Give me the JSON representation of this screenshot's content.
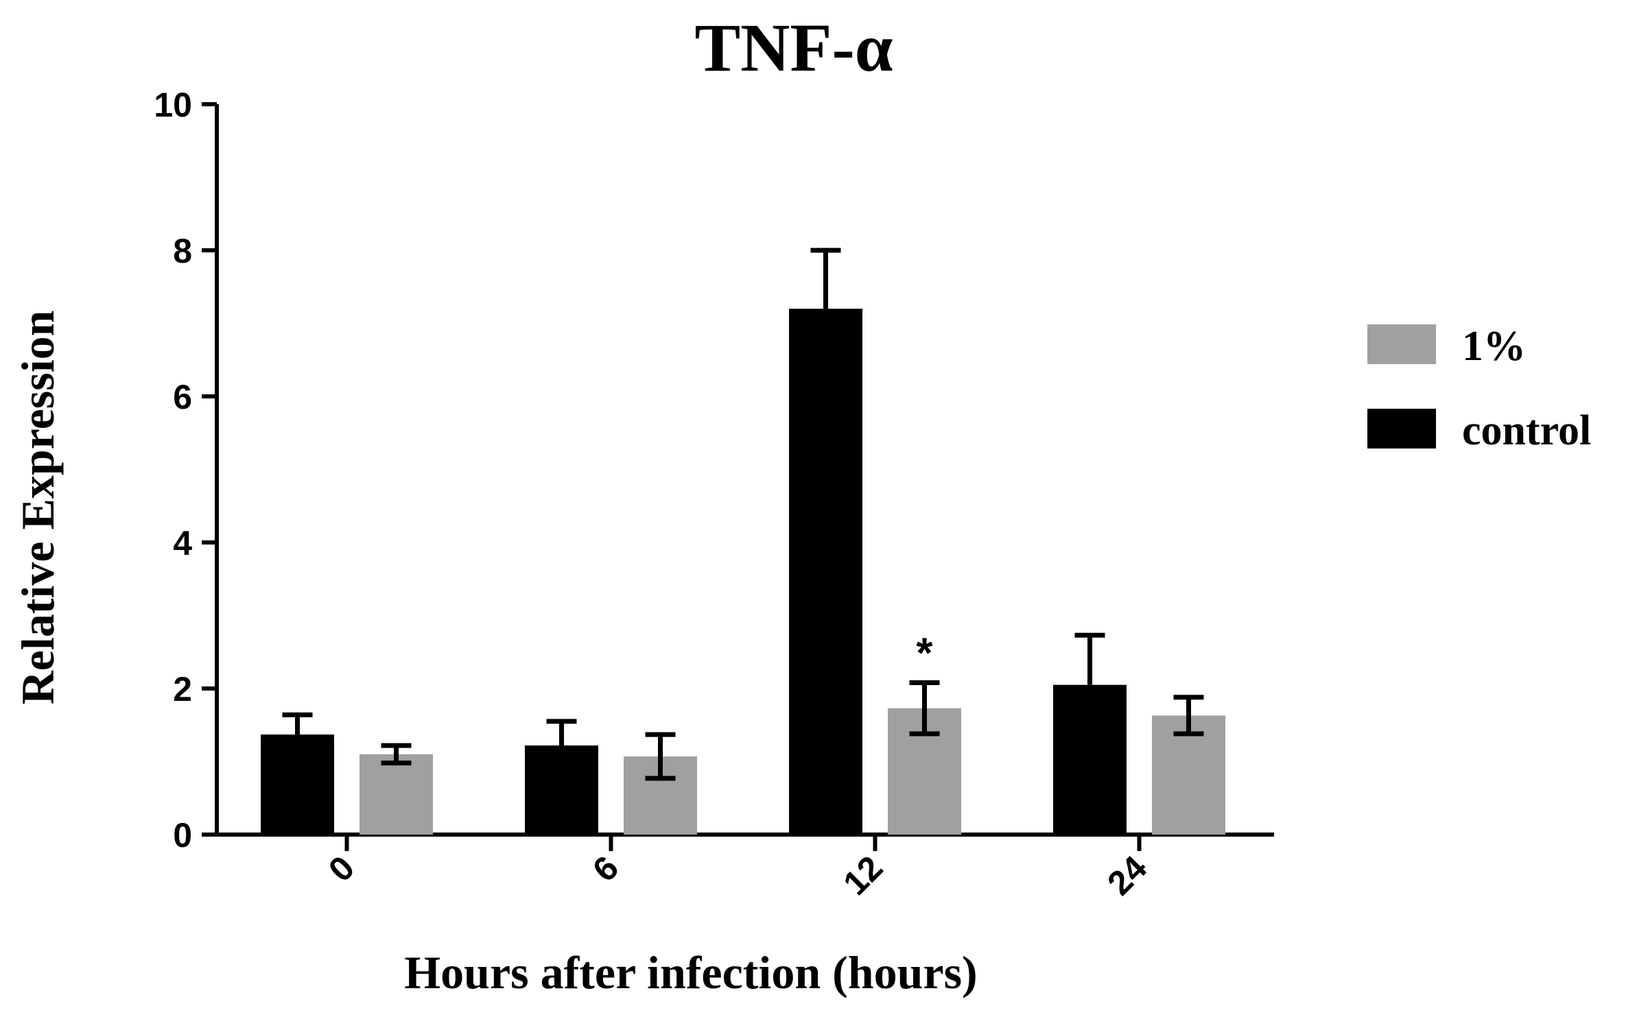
{
  "chart_data": {
    "type": "bar",
    "title": "TNF-α",
    "xlabel": "Hours after infection (hours)",
    "ylabel": "Relative Expression",
    "categories": [
      "0",
      "6",
      "12",
      "24"
    ],
    "ylim": [
      0,
      10
    ],
    "yticks": [
      "0",
      "2",
      "4",
      "6",
      "8",
      "10"
    ],
    "series": [
      {
        "name": "control",
        "color": "#000000",
        "values": [
          1.37,
          1.22,
          7.2,
          2.05
        ],
        "errors": [
          0.27,
          0.33,
          0.8,
          0.68
        ]
      },
      {
        "name": "1%",
        "color": "#a0a0a0",
        "values": [
          1.1,
          1.07,
          1.73,
          1.63
        ],
        "errors": [
          0.12,
          0.3,
          0.35,
          0.25
        ]
      }
    ],
    "legend": {
      "placement": "right",
      "order": [
        "1%",
        "control"
      ]
    },
    "annotations": [
      {
        "text": "*",
        "category": "12",
        "series": "1%"
      }
    ],
    "grid": false
  }
}
